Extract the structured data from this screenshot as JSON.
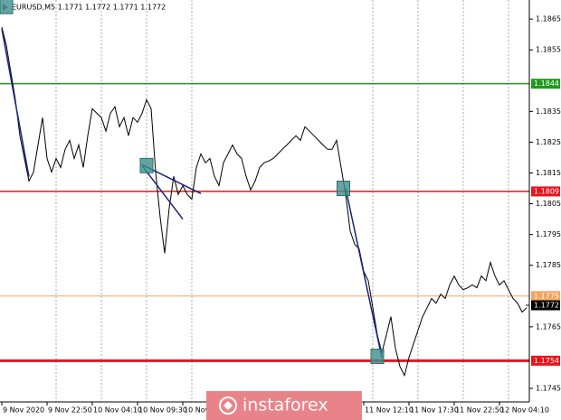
{
  "chart_data": {
    "type": "line",
    "title": "EURUSD,M5  1.1771 1.1772 1.1771 1.1772",
    "watermark": "instaforex",
    "categories": [
      "9 Nov 2020",
      null,
      null,
      null,
      null,
      null,
      null,
      null,
      null,
      null,
      "9 Nov 22:50",
      null,
      null,
      null,
      null,
      null,
      null,
      null,
      null,
      null,
      "10 Nov 04:10",
      null,
      null,
      null,
      null,
      null,
      null,
      null,
      null,
      null,
      "10 Nov 09:30",
      null,
      null,
      null,
      null,
      null,
      null,
      null,
      null,
      null,
      "10 Nov",
      null,
      null,
      null,
      null,
      null,
      null,
      null,
      null,
      null,
      null,
      null,
      null,
      null,
      null,
      null,
      null,
      null,
      null,
      null,
      null,
      null,
      null,
      null,
      null,
      null,
      null,
      null,
      null,
      null,
      null,
      null,
      null,
      null,
      null,
      null,
      null,
      null,
      null,
      null,
      "11 Nov 12:10",
      null,
      null,
      null,
      null,
      null,
      null,
      null,
      null,
      null,
      "11 Nov 17:30",
      null,
      null,
      null,
      null,
      null,
      null,
      null,
      null,
      null,
      "11 Nov 22:50",
      null,
      null,
      null,
      null,
      null,
      null,
      null,
      null,
      null,
      "12 Nov 04:10",
      null,
      null,
      null,
      null,
      null,
      null
    ],
    "series": [
      {
        "name": "EURUSD,M5",
        "color": "#000000",
        "values": [
          1.18624,
          1.18565,
          1.18477,
          1.18388,
          1.18271,
          1.18197,
          1.18124,
          1.18153,
          1.18241,
          1.1833,
          1.18197,
          1.18153,
          1.18197,
          1.18168,
          1.18227,
          1.18256,
          1.18197,
          1.18241,
          1.18168,
          1.18271,
          1.18359,
          1.18344,
          1.1833,
          1.18286,
          1.18344,
          1.18365,
          1.183,
          1.1833,
          1.18271,
          1.1833,
          1.18315,
          1.18344,
          1.18388,
          1.18359,
          1.18153,
          1.18006,
          1.17889,
          1.18036,
          1.18139,
          1.1808,
          1.18109,
          1.1808,
          1.18065,
          1.18168,
          1.18212,
          1.18183,
          1.18197,
          1.18139,
          1.18109,
          1.18183,
          1.18212,
          1.18241,
          1.18212,
          1.18197,
          1.18139,
          1.18095,
          1.18124,
          1.18168,
          1.18183,
          1.18189,
          1.18197,
          1.18212,
          1.18227,
          1.18241,
          1.18256,
          1.18271,
          1.18256,
          1.183,
          1.18286,
          1.18271,
          1.18256,
          1.18241,
          1.18227,
          1.18227,
          1.18256,
          1.18168,
          1.1808,
          1.17962,
          1.17918,
          1.17903,
          1.1783,
          1.178,
          1.17712,
          1.17624,
          1.17565,
          1.17624,
          1.17683,
          1.1758,
          1.17521,
          1.17492,
          1.17551,
          1.17595,
          1.17639,
          1.17683,
          1.17712,
          1.17742,
          1.17727,
          1.17756,
          1.17742,
          1.17786,
          1.17815,
          1.17786,
          1.17771,
          1.17777,
          1.17786,
          1.17777,
          1.17815,
          1.178,
          1.17859,
          1.17815,
          1.17786,
          1.178,
          1.17771,
          1.17742,
          1.17727,
          1.17698,
          1.17712
        ]
      }
    ],
    "xlim": [
      -0.4,
      116.6
    ],
    "ylim": [
      1.17406,
      1.18712
    ],
    "yticks": [
      1.1865,
      1.1855,
      1.1835,
      1.1825,
      1.1815,
      1.1805,
      1.1795,
      1.1785,
      1.1765,
      1.1745
    ],
    "grid": true,
    "levels": [
      {
        "value": 1.1844,
        "color": "#1e9a1e",
        "line_width": 1.5
      },
      {
        "value": 1.1809,
        "color": "#e8141e",
        "line_width": 1.5
      },
      {
        "value": 1.1754,
        "color": "#e8141e",
        "line_width": 3
      },
      {
        "value": 1.1775,
        "color": "#f4a460",
        "line_width": 1
      }
    ],
    "current_price": 1.1772,
    "trend_lines": [
      {
        "x": [
          0,
          6
        ],
        "y": [
          1.18618,
          1.18138
        ]
      },
      {
        "x": [
          31,
          40
        ],
        "y": [
          1.18174,
          1.18
        ]
      },
      {
        "x": [
          31,
          44
        ],
        "y": [
          1.18177,
          1.18083
        ]
      },
      {
        "x": [
          76,
          84
        ],
        "y": [
          1.181,
          1.1755
        ]
      }
    ],
    "signals": [
      {
        "x": 1,
        "y": 1.18691
      },
      {
        "x": 32,
        "y": 1.18174
      },
      {
        "x": 75.5,
        "y": 1.181
      },
      {
        "x": 83,
        "y": 1.17554
      }
    ]
  }
}
